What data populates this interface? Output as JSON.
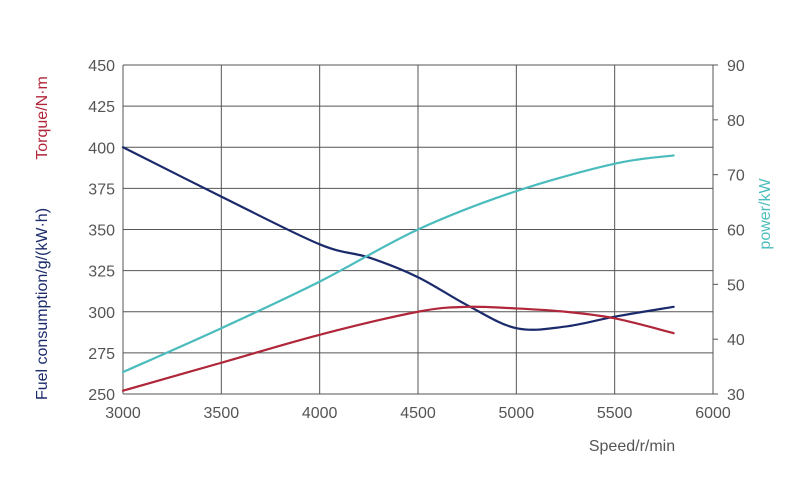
{
  "chart_data": {
    "type": "line",
    "xlabel": "Speed/r/min",
    "x_ticks": [
      "3000",
      "3500",
      "4000",
      "4500",
      "5000",
      "5500",
      "6000"
    ],
    "xlim": [
      3000,
      6000
    ],
    "left_axis": {
      "labels": [
        {
          "text": "Torque/N·m",
          "color": "#b0263a"
        },
        {
          "text": "Fuel consumption/g/(kW·h)",
          "color": "#1b2a6b"
        }
      ],
      "ylim": [
        250,
        450
      ],
      "ticks": [
        "250",
        "275",
        "300",
        "325",
        "350",
        "375",
        "400",
        "425",
        "450"
      ]
    },
    "right_axis": {
      "label": "power/kW",
      "color": "#4bbcbd",
      "ylim": [
        30,
        90
      ],
      "ticks": [
        "30",
        "40",
        "50",
        "60",
        "70",
        "80",
        "90"
      ]
    },
    "grid": true,
    "series": [
      {
        "name": "Fuel consumption",
        "axis": "left",
        "color": "#1b2a6b",
        "x": [
          3000,
          3500,
          4000,
          4250,
          4500,
          4750,
          5000,
          5250,
          5500,
          5800
        ],
        "y": [
          400,
          370,
          341,
          333,
          321,
          304,
          290,
          291,
          297,
          303
        ]
      },
      {
        "name": "Torque",
        "axis": "left",
        "color": "#b0263a",
        "x": [
          3000,
          3500,
          4000,
          4500,
          4750,
          5000,
          5250,
          5500,
          5800
        ],
        "y": [
          252,
          269,
          286,
          300,
          303,
          302,
          300,
          296,
          287
        ]
      },
      {
        "name": "power",
        "axis": "right",
        "color": "#4bbcbd",
        "x": [
          3000,
          3500,
          4000,
          4500,
          5000,
          5500,
          5800
        ],
        "y": [
          34,
          42,
          50.5,
          60,
          67,
          72,
          73.5
        ]
      }
    ]
  }
}
